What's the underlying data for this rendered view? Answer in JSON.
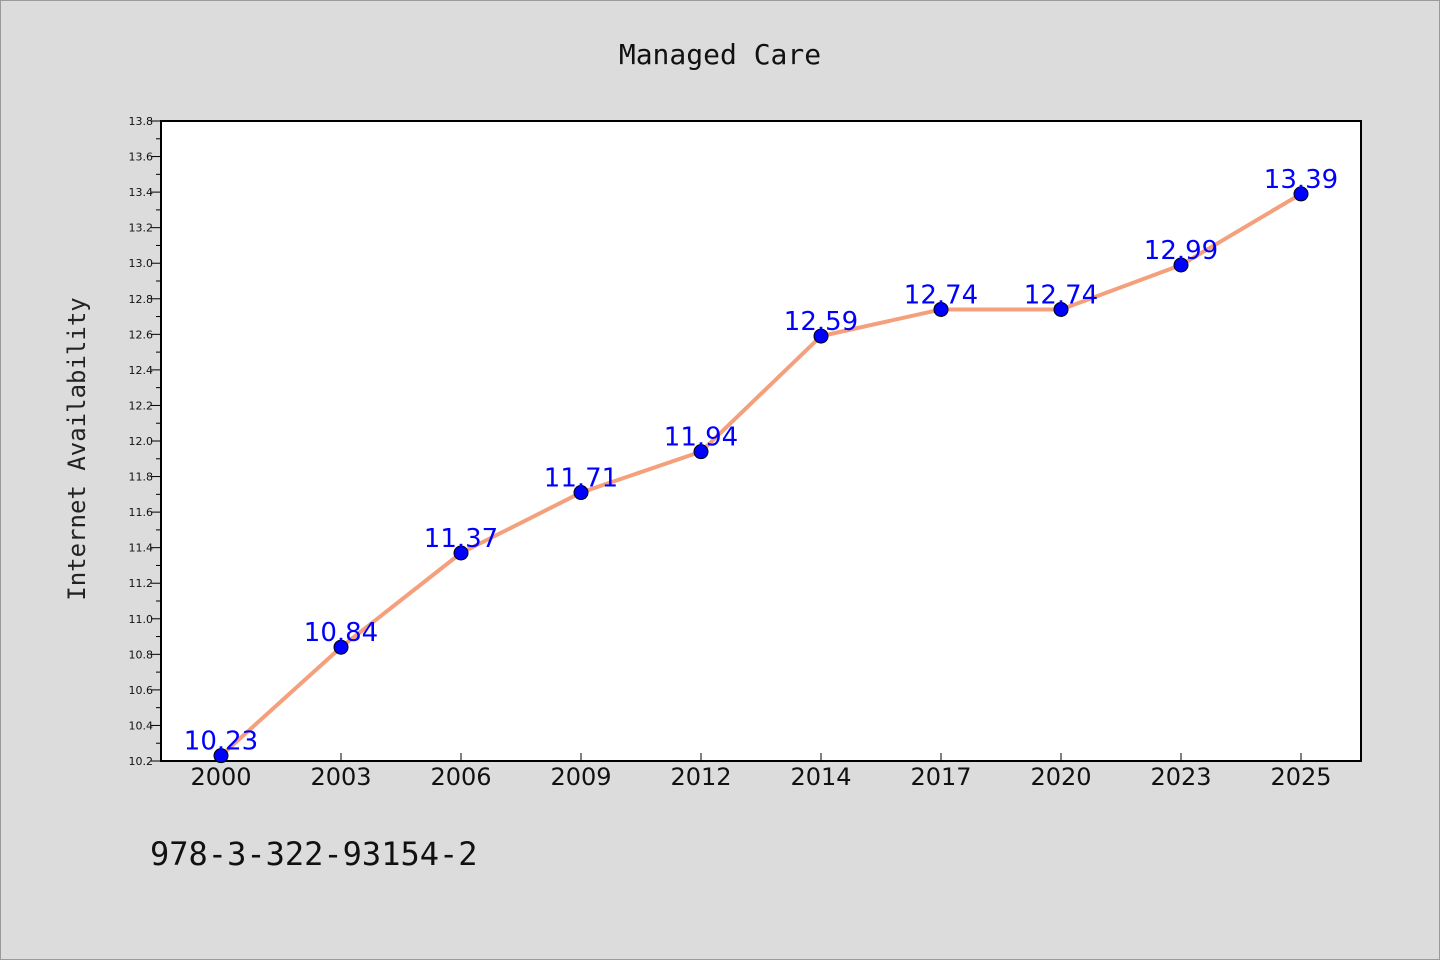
{
  "chart_data": {
    "type": "line",
    "title": "Managed Care",
    "xlabel": "",
    "ylabel": "Internet Availability",
    "categories": [
      "2000",
      "2003",
      "2006",
      "2009",
      "2012",
      "2014",
      "2017",
      "2020",
      "2023",
      "2025"
    ],
    "series": [
      {
        "values": [
          10.23,
          10.84,
          11.37,
          11.71,
          11.94,
          12.59,
          12.74,
          12.74,
          12.99,
          13.39
        ],
        "line_color": "#f4a07c",
        "marker_color": "#0000ff"
      }
    ],
    "data_labels": [
      "10.23",
      "10.84",
      "11.37",
      "11.71",
      "11.94",
      "12.59",
      "12.74",
      "12.74",
      "12.99",
      "13.39"
    ],
    "ylim": [
      10.2,
      13.8
    ],
    "y_ticks": [
      "10.2",
      "10.4",
      "10.6",
      "10.8",
      "11.0",
      "11.2",
      "11.4",
      "11.6",
      "11.8",
      "12.0",
      "12.2",
      "12.4",
      "12.6",
      "12.8",
      "13.0",
      "13.2",
      "13.4",
      "13.6",
      "13.8"
    ],
    "grid": false,
    "legend": "none",
    "annotation": "978-3-322-93154-2"
  }
}
